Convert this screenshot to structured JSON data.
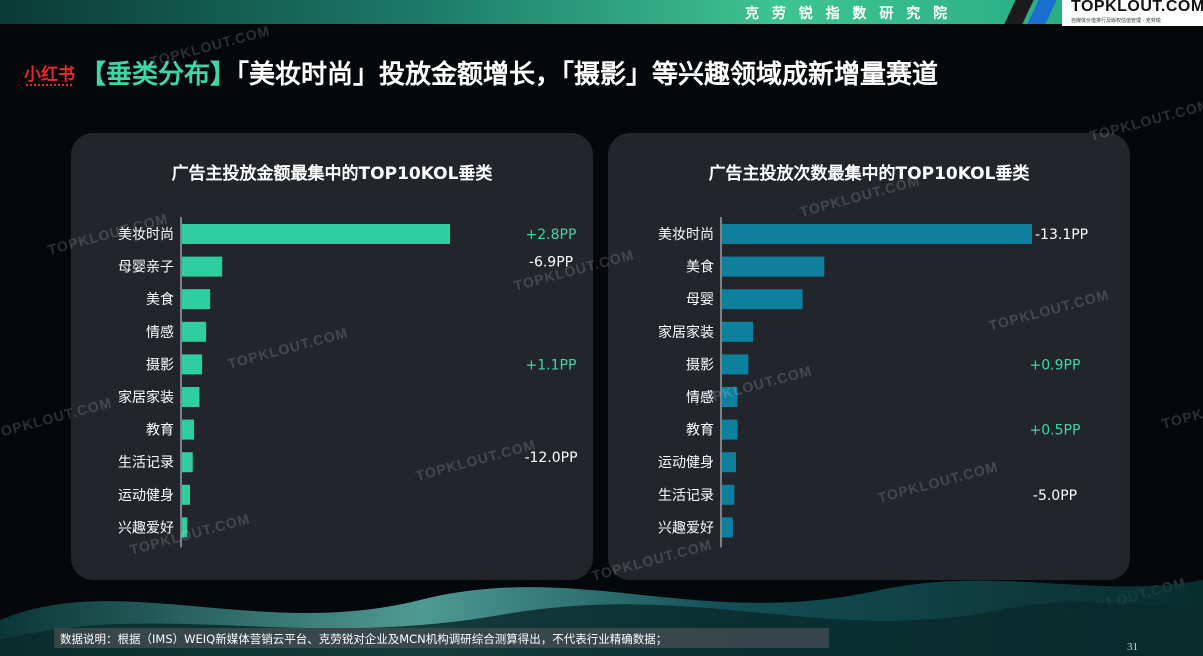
{
  "header": {
    "research_label": "克 劳 锐 指 数 研 究 院",
    "logo_text": "TOPKLOUT.COM",
    "logo_sub": "自媒体价值排行及版权估值管理 · 克劳锐"
  },
  "platform_logo": "小红书",
  "headline": {
    "tag": "【垂类分布】",
    "text": "「美妆时尚」投放金额增长，「摄影」等兴趣领域成新增量赛道"
  },
  "watermark_text": "TOPKLOUT.COM",
  "footnote": "数据说明：根据（IMS）WEIQ新媒体营销云平台、克劳锐对企业及MCN机构调研综合测算得出，不代表行业精确数据；",
  "page_number": "31",
  "colors": {
    "accent_green": "#2fcea0",
    "accent_blue": "#0f7f9e",
    "positive_text": "#3ed6a6",
    "negative_text": "#ffffff"
  },
  "chart_data": [
    {
      "type": "bar",
      "orientation": "horizontal",
      "title": "广告主投放金额最集中的TOP10KOL垂类",
      "categories": [
        "美妆时尚",
        "母婴亲子",
        "美食",
        "情感",
        "摄影",
        "家居家装",
        "教育",
        "生活记录",
        "运动健身",
        "兴趣爱好"
      ],
      "values": [
        100,
        15,
        10.5,
        9,
        7.5,
        6.5,
        4.5,
        4,
        3,
        2
      ],
      "value_unit": "relative share (no axis scale shown)",
      "changes": [
        {
          "category": "美妆时尚",
          "label": "+2.8PP"
        },
        {
          "category": "母婴亲子",
          "label": "-6.9PP"
        },
        {
          "category": "摄影",
          "label": "+1.1PP"
        },
        {
          "category": "生活记录",
          "label": "-12.0PP"
        }
      ],
      "color": "#2fcea0",
      "grid": false
    },
    {
      "type": "bar",
      "orientation": "horizontal",
      "title": "广告主投放次数最集中的TOP10KOL垂类",
      "categories": [
        "美妆时尚",
        "美食",
        "母婴",
        "家居家装",
        "摄影",
        "情感",
        "教育",
        "运动健身",
        "生活记录",
        "兴趣爱好"
      ],
      "values": [
        100,
        33,
        26,
        10,
        8.5,
        5,
        5,
        4.5,
        4,
        3.5
      ],
      "value_unit": "relative share (no axis scale shown)",
      "changes": [
        {
          "category": "美妆时尚",
          "label": "-13.1PP"
        },
        {
          "category": "摄影",
          "label": "+0.9PP"
        },
        {
          "category": "教育",
          "label": "+0.5PP"
        },
        {
          "category": "生活记录",
          "label": "-5.0PP"
        }
      ],
      "color": "#0f7f9e",
      "grid": false
    }
  ]
}
